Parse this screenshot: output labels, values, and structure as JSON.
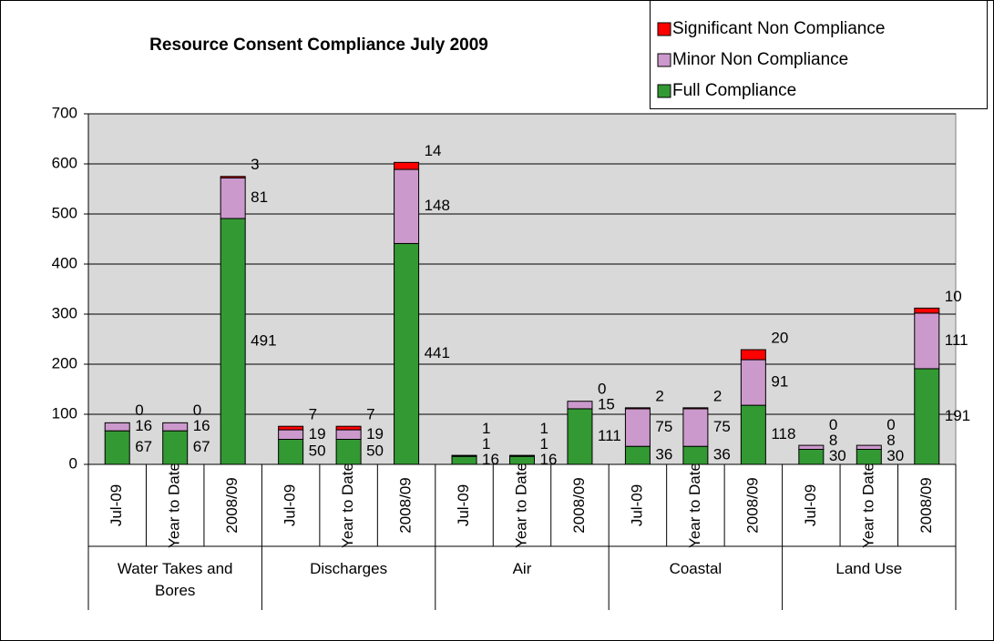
{
  "chart_data": {
    "type": "bar",
    "stacked": true,
    "title": "Resource Consent Compliance July 2009",
    "groups": [
      {
        "name": "Water Takes and Bores",
        "categories": [
          "Jul-09",
          "Year to Date",
          "2008/09"
        ]
      },
      {
        "name": "Discharges",
        "categories": [
          "Jul-09",
          "Year to Date",
          "2008/09"
        ]
      },
      {
        "name": "Air",
        "categories": [
          "Jul-09",
          "Year to Date",
          "2008/09"
        ]
      },
      {
        "name": "Coastal",
        "categories": [
          "Jul-09",
          "Year to Date",
          "2008/09"
        ]
      },
      {
        "name": "Land Use",
        "categories": [
          "Jul-09",
          "Year to Date",
          "2008/09"
        ]
      }
    ],
    "series": [
      {
        "name": "Full Compliance",
        "color": "#339933",
        "values": [
          67,
          67,
          491,
          50,
          50,
          441,
          16,
          16,
          111,
          36,
          36,
          118,
          30,
          30,
          191
        ]
      },
      {
        "name": "Minor Non Compliance",
        "color": "#cc99cc",
        "values": [
          16,
          16,
          81,
          19,
          19,
          148,
          1,
          1,
          15,
          75,
          75,
          91,
          8,
          8,
          111
        ]
      },
      {
        "name": "Significant Non Compliance",
        "color": "#ff0000",
        "values": [
          0,
          0,
          3,
          7,
          7,
          14,
          1,
          1,
          0,
          2,
          2,
          20,
          0,
          0,
          10
        ]
      }
    ],
    "ylim": [
      0,
      700
    ],
    "yticks": [
      0,
      100,
      200,
      300,
      400,
      500,
      600,
      700
    ],
    "grid": true,
    "legend": "top-right"
  }
}
